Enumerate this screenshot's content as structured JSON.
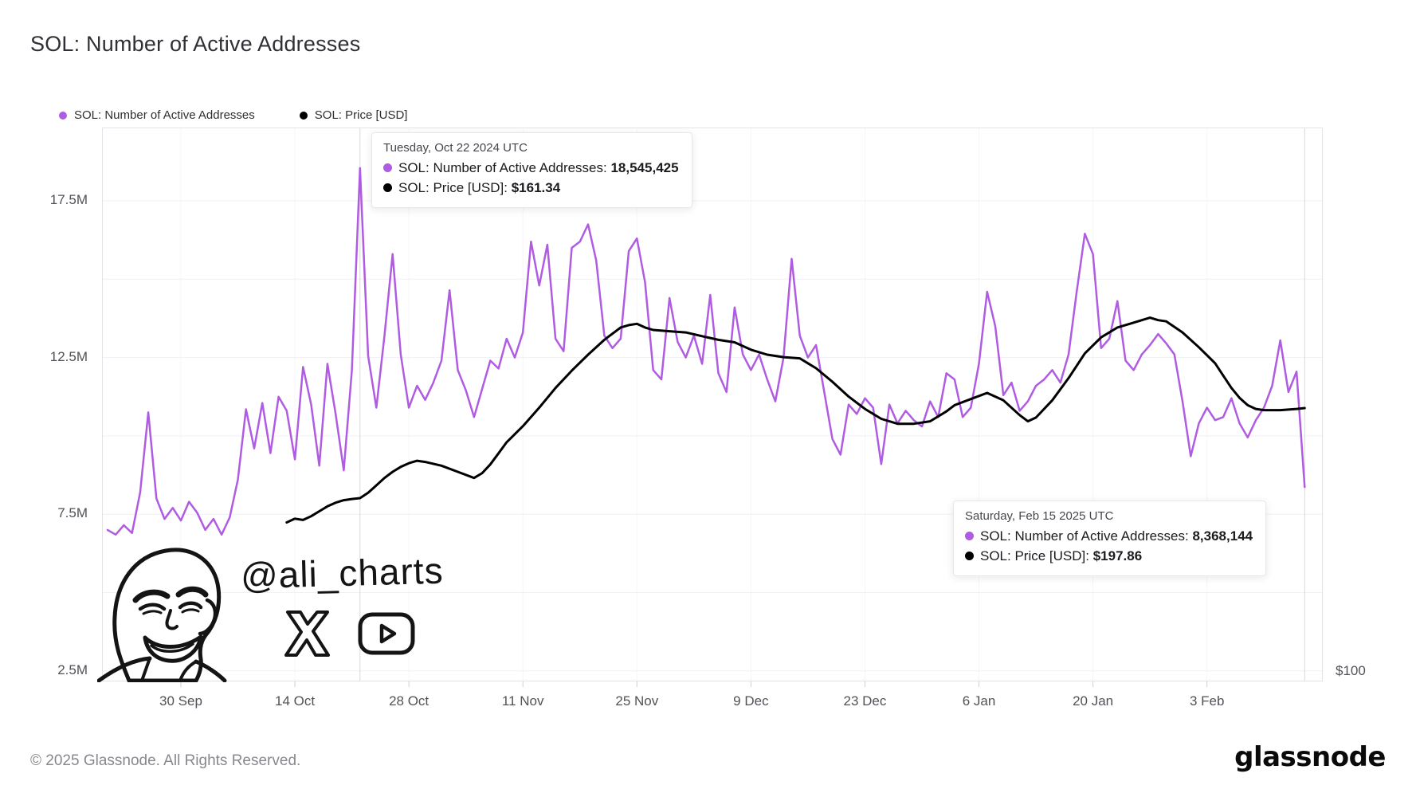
{
  "page": {
    "title": "SOL: Number of Active Addresses"
  },
  "legend": [
    {
      "label": "SOL: Number of Active Addresses",
      "color": "#b05ce2"
    },
    {
      "label": "SOL: Price [USD]",
      "color": "#000000"
    }
  ],
  "right_axis": {
    "label": "$100"
  },
  "tooltips": [
    {
      "date_label": "Tuesday, Oct 22 2024 UTC",
      "rows": [
        {
          "label": "SOL: Number of Active Addresses",
          "value": "18,545,425",
          "color": "#b05ce2"
        },
        {
          "label": "SOL: Price [USD]",
          "value": "$161.34",
          "color": "#000000"
        }
      ]
    },
    {
      "date_label": "Saturday, Feb 15 2025 UTC",
      "rows": [
        {
          "label": "SOL: Number of Active Addresses",
          "value": "8,368,144",
          "color": "#b05ce2"
        },
        {
          "label": "SOL: Price [USD]",
          "value": "$197.86",
          "color": "#000000"
        }
      ]
    }
  ],
  "watermark": {
    "handle": "@ali_charts",
    "icons": [
      "x-logo",
      "youtube-logo"
    ]
  },
  "footer": {
    "copyright": "© 2025 Glassnode. All Rights Reserved.",
    "brand": "glassnode"
  },
  "chart_data": {
    "type": "line",
    "title": "SOL: Number of Active Addresses",
    "grid": "horizontal-light",
    "legend_position": "top-left",
    "x_axis": {
      "start_date": "2024-09-21",
      "end_date": "2025-02-15",
      "ticks": [
        {
          "date": "2024-09-30",
          "label": "30 Sep"
        },
        {
          "date": "2024-10-14",
          "label": "14 Oct"
        },
        {
          "date": "2024-10-28",
          "label": "28 Oct"
        },
        {
          "date": "2024-11-11",
          "label": "11 Nov"
        },
        {
          "date": "2024-11-25",
          "label": "25 Nov"
        },
        {
          "date": "2024-12-09",
          "label": "9 Dec"
        },
        {
          "date": "2024-12-23",
          "label": "23 Dec"
        },
        {
          "date": "2025-01-06",
          "label": "6 Jan"
        },
        {
          "date": "2025-01-20",
          "label": "20 Jan"
        },
        {
          "date": "2025-02-03",
          "label": "3 Feb"
        }
      ]
    },
    "y_left": {
      "unit": "addresses (millions)",
      "ticks": [
        {
          "value": 17.5,
          "label": "17.5M"
        },
        {
          "value": 12.5,
          "label": "12.5M"
        },
        {
          "value": 7.5,
          "label": "7.5M"
        },
        {
          "value": 2.5,
          "label": "2.5M"
        }
      ],
      "grid_values": [
        17.5,
        15,
        12.5,
        10,
        7.5,
        5,
        2.5
      ],
      "range": [
        2.2,
        19.3
      ]
    },
    "y_right": {
      "unit": "USD",
      "ticks": [
        {
          "value": 100,
          "label": "$100"
        }
      ],
      "range": [
        96,
        295
      ]
    },
    "annotations": [
      {
        "date": "2024-10-22",
        "active_addresses": 18545425,
        "price_usd": 161.34
      },
      {
        "date": "2025-02-15",
        "active_addresses": 8368144,
        "price_usd": 197.86
      }
    ],
    "series": [
      {
        "name": "SOL: Number of Active Addresses",
        "color": "#b05ce2",
        "axis": "left",
        "unit": "millions",
        "stroke_width": 2.5,
        "points": [
          [
            "2024-09-21",
            7.0
          ],
          [
            "2024-09-22",
            6.85
          ],
          [
            "2024-09-23",
            7.15
          ],
          [
            "2024-09-24",
            6.9
          ],
          [
            "2024-09-25",
            8.2
          ],
          [
            "2024-09-26",
            10.75
          ],
          [
            "2024-09-27",
            8.0
          ],
          [
            "2024-09-28",
            7.35
          ],
          [
            "2024-09-29",
            7.7
          ],
          [
            "2024-09-30",
            7.3
          ],
          [
            "2024-10-01",
            7.9
          ],
          [
            "2024-10-02",
            7.55
          ],
          [
            "2024-10-03",
            7.0
          ],
          [
            "2024-10-04",
            7.35
          ],
          [
            "2024-10-05",
            6.85
          ],
          [
            "2024-10-06",
            7.4
          ],
          [
            "2024-10-07",
            8.6
          ],
          [
            "2024-10-08",
            10.85
          ],
          [
            "2024-10-09",
            9.6
          ],
          [
            "2024-10-10",
            11.05
          ],
          [
            "2024-10-11",
            9.45
          ],
          [
            "2024-10-12",
            11.25
          ],
          [
            "2024-10-13",
            10.8
          ],
          [
            "2024-10-14",
            9.25
          ],
          [
            "2024-10-15",
            12.2
          ],
          [
            "2024-10-16",
            11.0
          ],
          [
            "2024-10-17",
            9.05
          ],
          [
            "2024-10-18",
            12.3
          ],
          [
            "2024-10-19",
            10.7
          ],
          [
            "2024-10-20",
            8.9
          ],
          [
            "2024-10-21",
            12.1
          ],
          [
            "2024-10-22",
            18.545
          ],
          [
            "2024-10-23",
            12.55
          ],
          [
            "2024-10-24",
            10.9
          ],
          [
            "2024-10-25",
            13.2
          ],
          [
            "2024-10-26",
            15.8
          ],
          [
            "2024-10-27",
            12.6
          ],
          [
            "2024-10-28",
            10.9
          ],
          [
            "2024-10-29",
            11.6
          ],
          [
            "2024-10-30",
            11.15
          ],
          [
            "2024-10-31",
            11.7
          ],
          [
            "2024-11-01",
            12.4
          ],
          [
            "2024-11-02",
            14.65
          ],
          [
            "2024-11-03",
            12.1
          ],
          [
            "2024-11-04",
            11.45
          ],
          [
            "2024-11-05",
            10.6
          ],
          [
            "2024-11-06",
            11.5
          ],
          [
            "2024-11-07",
            12.4
          ],
          [
            "2024-11-08",
            12.15
          ],
          [
            "2024-11-09",
            13.1
          ],
          [
            "2024-11-10",
            12.5
          ],
          [
            "2024-11-11",
            13.3
          ],
          [
            "2024-11-12",
            16.2
          ],
          [
            "2024-11-13",
            14.8
          ],
          [
            "2024-11-14",
            16.1
          ],
          [
            "2024-11-15",
            13.1
          ],
          [
            "2024-11-16",
            12.7
          ],
          [
            "2024-11-17",
            16.0
          ],
          [
            "2024-11-18",
            16.2
          ],
          [
            "2024-11-19",
            16.75
          ],
          [
            "2024-11-20",
            15.6
          ],
          [
            "2024-11-21",
            13.2
          ],
          [
            "2024-11-22",
            12.8
          ],
          [
            "2024-11-23",
            13.1
          ],
          [
            "2024-11-24",
            15.9
          ],
          [
            "2024-11-25",
            16.3
          ],
          [
            "2024-11-26",
            14.9
          ],
          [
            "2024-11-27",
            12.1
          ],
          [
            "2024-11-28",
            11.8
          ],
          [
            "2024-11-29",
            14.4
          ],
          [
            "2024-11-30",
            13.0
          ],
          [
            "2024-12-01",
            12.5
          ],
          [
            "2024-12-02",
            13.2
          ],
          [
            "2024-12-03",
            12.3
          ],
          [
            "2024-12-04",
            14.5
          ],
          [
            "2024-12-05",
            12.0
          ],
          [
            "2024-12-06",
            11.4
          ],
          [
            "2024-12-07",
            14.1
          ],
          [
            "2024-12-08",
            12.6
          ],
          [
            "2024-12-09",
            12.1
          ],
          [
            "2024-12-10",
            12.6
          ],
          [
            "2024-12-11",
            11.8
          ],
          [
            "2024-12-12",
            11.1
          ],
          [
            "2024-12-13",
            12.5
          ],
          [
            "2024-12-14",
            15.65
          ],
          [
            "2024-12-15",
            13.2
          ],
          [
            "2024-12-16",
            12.5
          ],
          [
            "2024-12-17",
            12.9
          ],
          [
            "2024-12-18",
            11.4
          ],
          [
            "2024-12-19",
            9.9
          ],
          [
            "2024-12-20",
            9.4
          ],
          [
            "2024-12-21",
            11.0
          ],
          [
            "2024-12-22",
            10.7
          ],
          [
            "2024-12-23",
            11.2
          ],
          [
            "2024-12-24",
            10.9
          ],
          [
            "2024-12-25",
            9.1
          ],
          [
            "2024-12-26",
            11.0
          ],
          [
            "2024-12-27",
            10.4
          ],
          [
            "2024-12-28",
            10.8
          ],
          [
            "2024-12-29",
            10.5
          ],
          [
            "2024-12-30",
            10.3
          ],
          [
            "2024-12-31",
            11.1
          ],
          [
            "2025-01-01",
            10.6
          ],
          [
            "2025-01-02",
            12.0
          ],
          [
            "2025-01-03",
            11.8
          ],
          [
            "2025-01-04",
            10.6
          ],
          [
            "2025-01-05",
            10.9
          ],
          [
            "2025-01-06",
            12.3
          ],
          [
            "2025-01-07",
            14.6
          ],
          [
            "2025-01-08",
            13.5
          ],
          [
            "2025-01-09",
            11.3
          ],
          [
            "2025-01-10",
            11.7
          ],
          [
            "2025-01-11",
            10.8
          ],
          [
            "2025-01-12",
            11.1
          ],
          [
            "2025-01-13",
            11.6
          ],
          [
            "2025-01-14",
            11.8
          ],
          [
            "2025-01-15",
            12.1
          ],
          [
            "2025-01-16",
            11.7
          ],
          [
            "2025-01-17",
            12.6
          ],
          [
            "2025-01-18",
            14.6
          ],
          [
            "2025-01-19",
            16.45
          ],
          [
            "2025-01-20",
            15.8
          ],
          [
            "2025-01-21",
            12.8
          ],
          [
            "2025-01-22",
            13.1
          ],
          [
            "2025-01-23",
            14.3
          ],
          [
            "2025-01-24",
            12.4
          ],
          [
            "2025-01-25",
            12.1
          ],
          [
            "2025-01-26",
            12.6
          ],
          [
            "2025-01-27",
            12.9
          ],
          [
            "2025-01-28",
            13.25
          ],
          [
            "2025-01-29",
            12.95
          ],
          [
            "2025-01-30",
            12.6
          ],
          [
            "2025-01-31",
            11.1
          ],
          [
            "2025-02-01",
            9.35
          ],
          [
            "2025-02-02",
            10.4
          ],
          [
            "2025-02-03",
            10.9
          ],
          [
            "2025-02-04",
            10.5
          ],
          [
            "2025-02-05",
            10.6
          ],
          [
            "2025-02-06",
            11.2
          ],
          [
            "2025-02-07",
            10.4
          ],
          [
            "2025-02-08",
            9.95
          ],
          [
            "2025-02-09",
            10.5
          ],
          [
            "2025-02-10",
            10.9
          ],
          [
            "2025-02-11",
            11.6
          ],
          [
            "2025-02-12",
            13.05
          ],
          [
            "2025-02-13",
            11.4
          ],
          [
            "2025-02-14",
            12.05
          ],
          [
            "2025-02-15",
            8.368
          ]
        ]
      },
      {
        "name": "SOL: Price [USD]",
        "color": "#000000",
        "axis": "right",
        "unit": "USD",
        "stroke_width": 3,
        "points": [
          [
            "2024-10-13",
            151.5
          ],
          [
            "2024-10-14",
            153
          ],
          [
            "2024-10-15",
            152.5
          ],
          [
            "2024-10-16",
            154
          ],
          [
            "2024-10-17",
            156
          ],
          [
            "2024-10-18",
            158
          ],
          [
            "2024-10-19",
            159.5
          ],
          [
            "2024-10-20",
            160.5
          ],
          [
            "2024-10-21",
            161
          ],
          [
            "2024-10-22",
            161.34
          ],
          [
            "2024-10-23",
            163.5
          ],
          [
            "2024-10-24",
            166.5
          ],
          [
            "2024-10-25",
            169.5
          ],
          [
            "2024-10-26",
            172
          ],
          [
            "2024-10-27",
            174
          ],
          [
            "2024-10-28",
            175.5
          ],
          [
            "2024-10-29",
            176.5
          ],
          [
            "2024-10-30",
            176
          ],
          [
            "2024-11-01",
            174.5
          ],
          [
            "2024-11-03",
            172
          ],
          [
            "2024-11-05",
            169.5
          ],
          [
            "2024-11-06",
            171.5
          ],
          [
            "2024-11-07",
            175
          ],
          [
            "2024-11-08",
            179.5
          ],
          [
            "2024-11-09",
            184
          ],
          [
            "2024-11-11",
            190.5
          ],
          [
            "2024-11-13",
            198
          ],
          [
            "2024-11-15",
            206
          ],
          [
            "2024-11-17",
            213
          ],
          [
            "2024-11-19",
            219.5
          ],
          [
            "2024-11-21",
            225.5
          ],
          [
            "2024-11-23",
            230.5
          ],
          [
            "2024-11-24",
            231.5
          ],
          [
            "2024-11-25",
            232
          ],
          [
            "2024-11-26",
            230.5
          ],
          [
            "2024-11-27",
            229.5
          ],
          [
            "2024-11-29",
            229
          ],
          [
            "2024-12-01",
            228.5
          ],
          [
            "2024-12-03",
            227
          ],
          [
            "2024-12-05",
            225.5
          ],
          [
            "2024-12-07",
            224.5
          ],
          [
            "2024-12-09",
            221.5
          ],
          [
            "2024-12-11",
            219.5
          ],
          [
            "2024-12-13",
            218.5
          ],
          [
            "2024-12-15",
            218
          ],
          [
            "2024-12-17",
            214
          ],
          [
            "2024-12-19",
            208.5
          ],
          [
            "2024-12-21",
            202.5
          ],
          [
            "2024-12-23",
            197.5
          ],
          [
            "2024-12-25",
            193.5
          ],
          [
            "2024-12-27",
            191.5
          ],
          [
            "2024-12-29",
            191.5
          ],
          [
            "2024-12-31",
            192.5
          ],
          [
            "2025-01-02",
            196.5
          ],
          [
            "2025-01-03",
            199
          ],
          [
            "2025-01-05",
            201.5
          ],
          [
            "2025-01-07",
            204
          ],
          [
            "2025-01-09",
            201
          ],
          [
            "2025-01-11",
            195
          ],
          [
            "2025-01-12",
            192.5
          ],
          [
            "2025-01-13",
            194
          ],
          [
            "2025-01-15",
            201
          ],
          [
            "2025-01-17",
            210
          ],
          [
            "2025-01-19",
            220
          ],
          [
            "2025-01-21",
            226.5
          ],
          [
            "2025-01-23",
            230.5
          ],
          [
            "2025-01-25",
            232.5
          ],
          [
            "2025-01-27",
            234.5
          ],
          [
            "2025-01-28",
            233.5
          ],
          [
            "2025-01-29",
            233
          ],
          [
            "2025-01-31",
            228.5
          ],
          [
            "2025-02-02",
            222.5
          ],
          [
            "2025-02-04",
            216
          ],
          [
            "2025-02-05",
            211
          ],
          [
            "2025-02-06",
            206
          ],
          [
            "2025-02-07",
            202
          ],
          [
            "2025-02-08",
            199
          ],
          [
            "2025-02-09",
            197.5
          ],
          [
            "2025-02-10",
            197
          ],
          [
            "2025-02-12",
            197
          ],
          [
            "2025-02-14",
            197.5
          ],
          [
            "2025-02-15",
            197.86
          ]
        ]
      }
    ]
  }
}
